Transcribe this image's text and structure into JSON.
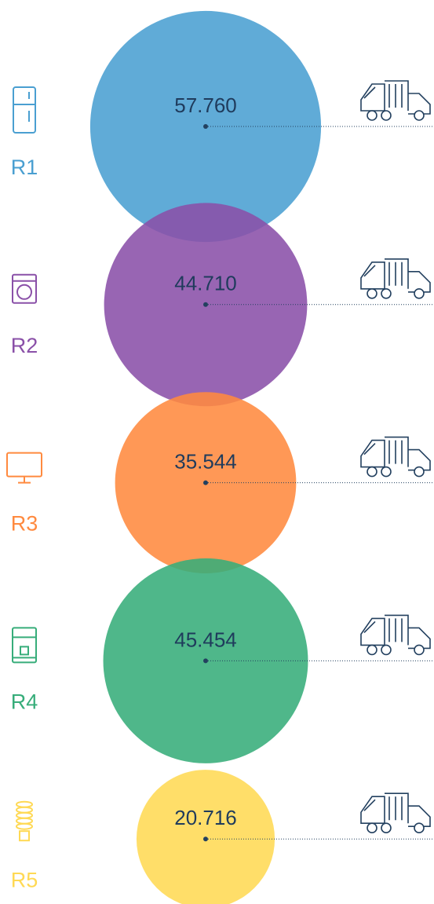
{
  "chart_data": {
    "type": "bubble",
    "categories": [
      "R1",
      "R2",
      "R3",
      "R4",
      "R5"
    ],
    "values": [
      57760,
      44710,
      35544,
      45454,
      20716
    ],
    "value_labels": [
      "57.760",
      "44.710",
      "35.544",
      "45.454",
      "20.716"
    ],
    "colors": [
      "#4a9fd1",
      "#8a50a8",
      "#ff8a3f",
      "#37ad7a",
      "#ffd954"
    ]
  }
}
